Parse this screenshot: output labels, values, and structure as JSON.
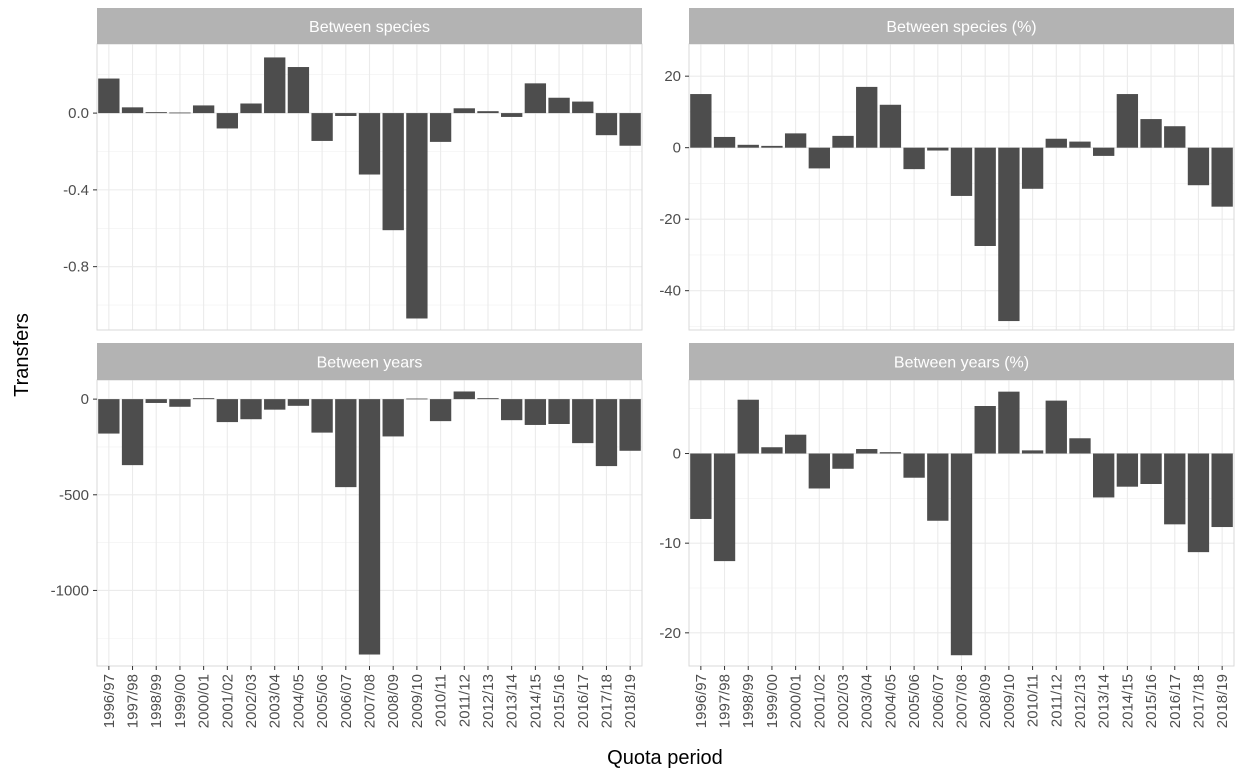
{
  "chart_data": {
    "type": "bar",
    "xlabel": "Quota period",
    "ylabel": "Transfers",
    "categories": [
      "1996/97",
      "1997/98",
      "1998/99",
      "1999/00",
      "2000/01",
      "2001/02",
      "2002/03",
      "2003/04",
      "2004/05",
      "2005/06",
      "2006/07",
      "2007/08",
      "2008/09",
      "2009/10",
      "2010/11",
      "2011/12",
      "2012/13",
      "2013/14",
      "2014/15",
      "2015/16",
      "2016/17",
      "2017/18",
      "2018/19"
    ],
    "bar_color": "#4d4d4d",
    "strip_color": "#b3b3b3",
    "panels": [
      {
        "title": "Between species",
        "ylim": [
          -1.13,
          0.36
        ],
        "yticks": [
          0.0,
          -0.4,
          -0.8
        ],
        "ytick_labels": [
          "0.0",
          "-0.4",
          "-0.8"
        ],
        "values": [
          0.18,
          0.03,
          0.005,
          0.003,
          0.04,
          -0.08,
          0.05,
          0.29,
          0.24,
          -0.145,
          -0.015,
          -0.32,
          -0.61,
          -1.07,
          -0.15,
          0.025,
          0.01,
          -0.02,
          0.155,
          0.08,
          0.06,
          -0.115,
          -0.17
        ]
      },
      {
        "title": "Between species (%)",
        "ylim": [
          -51,
          29
        ],
        "yticks": [
          20,
          0,
          -20,
          -40
        ],
        "ytick_labels": [
          "20",
          "0",
          "-20",
          "-40"
        ],
        "values": [
          15,
          3,
          0.8,
          0.5,
          4,
          -5.8,
          3.3,
          17,
          12,
          -6,
          -0.8,
          -13.5,
          -27.5,
          -48.5,
          -11.5,
          2.5,
          1.7,
          -2.3,
          15,
          8,
          6,
          -10.5,
          -16.5
        ]
      },
      {
        "title": "Between years",
        "ylim": [
          -1395,
          100
        ],
        "yticks": [
          0,
          -500,
          -1000
        ],
        "ytick_labels": [
          "0",
          "-500",
          "-1000"
        ],
        "values": [
          -180,
          -345,
          -20,
          -40,
          5,
          -120,
          -105,
          -55,
          -35,
          -175,
          -460,
          -1335,
          -195,
          3,
          -115,
          40,
          5,
          -110,
          -135,
          -130,
          -230,
          -350,
          -270
        ]
      },
      {
        "title": "Between years (%)",
        "ylim": [
          -23.7,
          8.2
        ],
        "yticks": [
          0,
          -10,
          -20
        ],
        "ytick_labels": [
          "0",
          "-10",
          "-20"
        ],
        "values": [
          -7.3,
          -12,
          6,
          0.7,
          2.1,
          -3.9,
          -1.7,
          0.5,
          0.15,
          -2.7,
          -7.5,
          -22.5,
          5.3,
          6.9,
          0.35,
          5.9,
          1.7,
          -4.9,
          -3.7,
          -3.4,
          -7.9,
          -11,
          -8.2
        ]
      }
    ]
  }
}
